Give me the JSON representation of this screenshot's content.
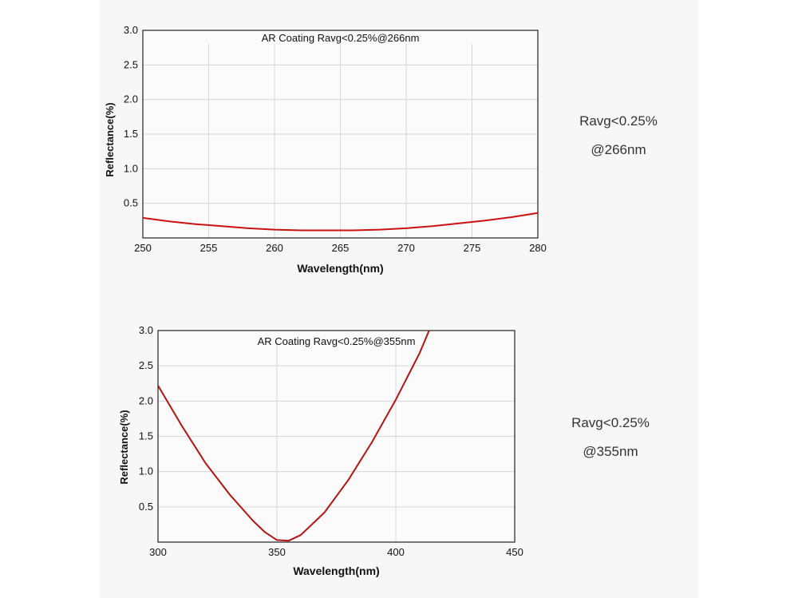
{
  "chart_data": [
    {
      "type": "line",
      "title": "AR Coating Ravg<0.25%@266nm",
      "xlabel": "Wavelength(nm)",
      "ylabel": "Reflectance(%)",
      "xlim": [
        250,
        280
      ],
      "ylim": [
        0,
        3.0
      ],
      "x_ticks": [
        "250",
        "255",
        "260",
        "265",
        "270",
        "275",
        "280"
      ],
      "y_ticks": [
        "0.5",
        "1.0",
        "1.5",
        "2.0",
        "2.5",
        "3.0"
      ],
      "grid": true,
      "line_color": "#cc1111",
      "series": [
        {
          "x": [
            250,
            252,
            254,
            256,
            258,
            260,
            262,
            264,
            266,
            268,
            270,
            272,
            274,
            276,
            278,
            280
          ],
          "values": [
            0.29,
            0.24,
            0.2,
            0.17,
            0.14,
            0.12,
            0.11,
            0.11,
            0.11,
            0.12,
            0.14,
            0.17,
            0.21,
            0.25,
            0.3,
            0.36
          ]
        }
      ],
      "side_note": [
        "Ravg<0.25%",
        "@266nm"
      ]
    },
    {
      "type": "line",
      "title": "AR Coating Ravg<0.25%@355nm",
      "xlabel": "Wavelength(nm)",
      "ylabel": "Reflectance(%)",
      "xlim": [
        300,
        450
      ],
      "ylim": [
        0,
        3.0
      ],
      "x_ticks": [
        "300",
        "350",
        "400",
        "450"
      ],
      "y_ticks": [
        "0.5",
        "1.0",
        "1.5",
        "2.0",
        "2.5",
        "3.0"
      ],
      "grid": true,
      "line_color": "#b01515",
      "series": [
        {
          "x": [
            300,
            310,
            320,
            330,
            340,
            345,
            350,
            355,
            360,
            370,
            380,
            390,
            400,
            410,
            414
          ],
          "values": [
            2.22,
            1.65,
            1.12,
            0.68,
            0.3,
            0.14,
            0.03,
            0.02,
            0.1,
            0.42,
            0.88,
            1.42,
            2.02,
            2.68,
            3.0
          ]
        }
      ],
      "side_note": [
        "Ravg<0.25%",
        "@355nm"
      ]
    }
  ]
}
